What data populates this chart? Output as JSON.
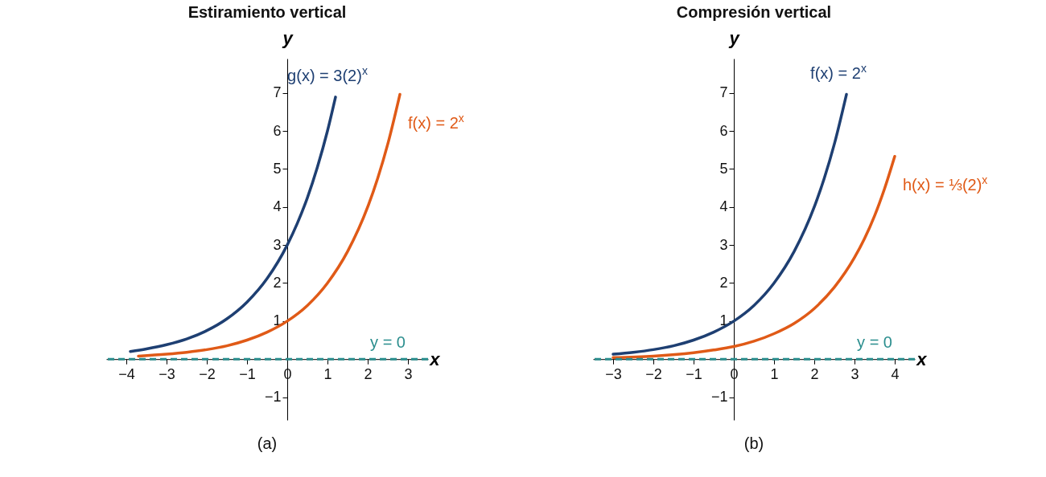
{
  "chart_data": [
    {
      "type": "line",
      "title": "Estiramiento vertical",
      "xlabel": "x",
      "ylabel": "y",
      "xlim": [
        -4.5,
        3.5
      ],
      "ylim": [
        -1.6,
        7.9
      ],
      "xticks": [
        {
          "value": -4,
          "label": "−4"
        },
        {
          "value": -3,
          "label": "−3"
        },
        {
          "value": -2,
          "label": "−2"
        },
        {
          "value": -1,
          "label": "−1"
        },
        0,
        1,
        2,
        3
      ],
      "yticks": [
        {
          "value": -1,
          "label": "−1"
        },
        1,
        2,
        3,
        4,
        5,
        6,
        7
      ],
      "grid": false,
      "legend": false,
      "series": [
        {
          "name": "g(x) = 3(2)$^{x}$",
          "color": "#1e3f72",
          "x": [
            -3.9,
            -3.5,
            -3,
            -2.5,
            -2,
            -1.5,
            -1,
            -0.5,
            0,
            0.25,
            0.5,
            0.75,
            1,
            1.2
          ],
          "values": [
            0.2,
            0.27,
            0.38,
            0.53,
            0.75,
            1.06,
            1.5,
            2.12,
            3,
            3.57,
            4.24,
            5.05,
            6,
            6.89
          ]
        },
        {
          "name": "f(x) = 2$^{x}$",
          "color": "#e05a17",
          "x": [
            -3.7,
            -3,
            -2.5,
            -2,
            -1.5,
            -1,
            -0.5,
            0,
            0.5,
            1,
            1.5,
            2,
            2.25,
            2.5,
            2.8
          ],
          "values": [
            0.08,
            0.13,
            0.18,
            0.25,
            0.35,
            0.5,
            0.71,
            1,
            1.41,
            2,
            2.83,
            4,
            4.76,
            5.66,
            6.96
          ]
        }
      ],
      "ref_lines": [
        {
          "axis": "y",
          "value": 0,
          "label": "y = 0",
          "color": "#2b8e8e",
          "line_style": "dashed"
        }
      ],
      "annotations": [
        "(a)"
      ]
    },
    {
      "type": "line",
      "title": "Compresión vertical",
      "xlabel": "x",
      "ylabel": "y",
      "xlim": [
        -3.5,
        4.5
      ],
      "ylim": [
        -1.6,
        7.9
      ],
      "xticks": [
        {
          "value": -3,
          "label": "−3"
        },
        {
          "value": -2,
          "label": "−2"
        },
        {
          "value": -1,
          "label": "−1"
        },
        0,
        1,
        2,
        3,
        4
      ],
      "yticks": [
        {
          "value": -1,
          "label": "−1"
        },
        1,
        2,
        3,
        4,
        5,
        6,
        7
      ],
      "grid": false,
      "legend": false,
      "series": [
        {
          "name": "f(x) = 2$^{x}$",
          "color": "#1e3f72",
          "x": [
            -3,
            -2.5,
            -2,
            -1.5,
            -1,
            -0.5,
            0,
            0.5,
            1,
            1.5,
            2,
            2.25,
            2.5,
            2.8
          ],
          "values": [
            0.13,
            0.18,
            0.25,
            0.35,
            0.5,
            0.71,
            1,
            1.41,
            2,
            2.83,
            4,
            4.76,
            5.66,
            6.96
          ]
        },
        {
          "name": "h(x) = ⅓(2)$^{x}$",
          "color": "#e05a17",
          "x": [
            -3,
            -2,
            -1,
            -0.5,
            0,
            0.5,
            1,
            1.5,
            2,
            2.5,
            3,
            3.25,
            3.5,
            3.75,
            4
          ],
          "values": [
            0.04,
            0.08,
            0.17,
            0.24,
            0.33,
            0.47,
            0.67,
            0.94,
            1.33,
            1.89,
            2.67,
            3.17,
            3.77,
            4.49,
            5.33
          ]
        }
      ],
      "ref_lines": [
        {
          "axis": "y",
          "value": 0,
          "label": "y = 0",
          "color": "#2b8e8e",
          "line_style": "dashed"
        }
      ],
      "annotations": [
        "(b)"
      ]
    }
  ]
}
